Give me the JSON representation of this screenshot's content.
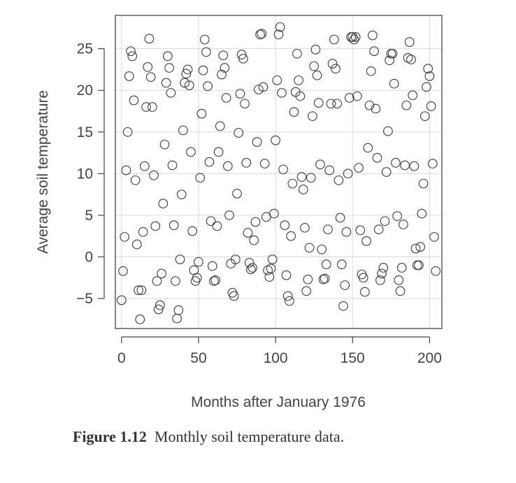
{
  "caption": {
    "label": "Figure 1.12",
    "text": "Monthly soil temperature data."
  },
  "chart_data": {
    "type": "scatter",
    "title": "",
    "xlabel": "Months after January 1976",
    "ylabel": "Average soil temperature",
    "xlim": [
      -4,
      208
    ],
    "ylim": [
      -8.6,
      29
    ],
    "xticks": [
      0,
      50,
      100,
      150,
      200
    ],
    "yticks": [
      -5,
      0,
      5,
      10,
      15,
      20,
      25
    ],
    "grid": true,
    "marker": "open-circle",
    "points": [
      [
        0,
        -5.2
      ],
      [
        1,
        -1.7
      ],
      [
        2,
        2.4
      ],
      [
        3,
        10.4
      ],
      [
        4,
        15.0
      ],
      [
        5,
        21.7
      ],
      [
        6,
        24.7
      ],
      [
        7,
        24.1
      ],
      [
        8,
        18.8
      ],
      [
        9,
        9.2
      ],
      [
        10,
        1.5
      ],
      [
        11,
        -4.0
      ],
      [
        12,
        -7.5
      ],
      [
        13,
        -4.0
      ],
      [
        14,
        3.0
      ],
      [
        15,
        10.9
      ],
      [
        16,
        18.0
      ],
      [
        17,
        22.8
      ],
      [
        18,
        26.2
      ],
      [
        19,
        21.6
      ],
      [
        20,
        18.0
      ],
      [
        21,
        9.8
      ],
      [
        22,
        3.7
      ],
      [
        23,
        -2.9
      ],
      [
        24,
        -6.3
      ],
      [
        25,
        -5.8
      ],
      [
        26,
        -2.0
      ],
      [
        27,
        6.4
      ],
      [
        28,
        13.5
      ],
      [
        29,
        20.9
      ],
      [
        30,
        24.1
      ],
      [
        31,
        22.7
      ],
      [
        32,
        19.7
      ],
      [
        33,
        11.0
      ],
      [
        34,
        3.8
      ],
      [
        35,
        -2.9
      ],
      [
        36,
        -7.4
      ],
      [
        37,
        -6.4
      ],
      [
        38,
        -0.3
      ],
      [
        39,
        7.5
      ],
      [
        40,
        15.2
      ],
      [
        41,
        20.9
      ],
      [
        42,
        22.0
      ],
      [
        43,
        22.5
      ],
      [
        44,
        20.6
      ],
      [
        45,
        12.6
      ],
      [
        46,
        3.1
      ],
      [
        47,
        -1.6
      ],
      [
        48,
        -2.9
      ],
      [
        49,
        -2.5
      ],
      [
        50,
        -0.6
      ],
      [
        51,
        9.5
      ],
      [
        52,
        17.2
      ],
      [
        53,
        22.4
      ],
      [
        54,
        26.1
      ],
      [
        55,
        24.6
      ],
      [
        56,
        20.5
      ],
      [
        57,
        11.4
      ],
      [
        58,
        4.3
      ],
      [
        59,
        -1.1
      ],
      [
        60,
        -2.9
      ],
      [
        61,
        -2.8
      ],
      [
        62,
        3.7
      ],
      [
        63,
        12.6
      ],
      [
        64,
        15.7
      ],
      [
        65,
        21.9
      ],
      [
        66,
        24.2
      ],
      [
        67,
        22.7
      ],
      [
        68,
        19.1
      ],
      [
        69,
        10.9
      ],
      [
        70,
        5.0
      ],
      [
        71,
        -0.8
      ],
      [
        72,
        -4.3
      ],
      [
        73,
        -4.7
      ],
      [
        74,
        -0.3
      ],
      [
        75,
        7.6
      ],
      [
        76,
        14.9
      ],
      [
        77,
        19.6
      ],
      [
        78,
        24.3
      ],
      [
        79,
        23.8
      ],
      [
        80,
        18.4
      ],
      [
        81,
        11.3
      ],
      [
        82,
        2.9
      ],
      [
        83,
        -0.7
      ],
      [
        84,
        -1.5
      ],
      [
        85,
        -1.3
      ],
      [
        86,
        2.0
      ],
      [
        87,
        4.2
      ],
      [
        88,
        13.8
      ],
      [
        89,
        20.1
      ],
      [
        90,
        26.7
      ],
      [
        91,
        26.8
      ],
      [
        92,
        20.4
      ],
      [
        93,
        11.2
      ],
      [
        94,
        4.8
      ],
      [
        95,
        -1.6
      ],
      [
        96,
        -2.4
      ],
      [
        97,
        -1.4
      ],
      [
        98,
        -0.3
      ],
      [
        99,
        5.2
      ],
      [
        100,
        14.0
      ],
      [
        101,
        21.2
      ],
      [
        102,
        26.7
      ],
      [
        103,
        27.6
      ],
      [
        104,
        19.7
      ],
      [
        105,
        10.5
      ],
      [
        106,
        3.8
      ],
      [
        107,
        -2.2
      ],
      [
        108,
        -4.7
      ],
      [
        109,
        -5.3
      ],
      [
        110,
        2.5
      ],
      [
        111,
        8.8
      ],
      [
        112,
        17.4
      ],
      [
        113,
        19.8
      ],
      [
        114,
        24.4
      ],
      [
        115,
        21.2
      ],
      [
        116,
        19.3
      ],
      [
        117,
        9.6
      ],
      [
        118,
        8.1
      ],
      [
        119,
        3.5
      ],
      [
        120,
        -4.1
      ],
      [
        121,
        -2.7
      ],
      [
        122,
        1.1
      ],
      [
        123,
        9.5
      ],
      [
        124,
        16.9
      ],
      [
        125,
        22.9
      ],
      [
        126,
        24.9
      ],
      [
        127,
        21.8
      ],
      [
        128,
        18.5
      ],
      [
        129,
        11.1
      ],
      [
        130,
        0.9
      ],
      [
        131,
        -2.7
      ],
      [
        132,
        -2.6
      ],
      [
        133,
        -0.9
      ],
      [
        134,
        3.3
      ],
      [
        135,
        10.4
      ],
      [
        136,
        18.4
      ],
      [
        137,
        23.2
      ],
      [
        138,
        26.1
      ],
      [
        139,
        22.6
      ],
      [
        140,
        18.4
      ],
      [
        141,
        9.2
      ],
      [
        142,
        4.7
      ],
      [
        143,
        -0.9
      ],
      [
        144,
        -5.9
      ],
      [
        145,
        -3.4
      ],
      [
        146,
        3.0
      ],
      [
        147,
        10.0
      ],
      [
        148,
        19.1
      ],
      [
        149,
        26.4
      ],
      [
        150,
        26.4
      ],
      [
        151,
        26.1
      ],
      [
        152,
        26.4
      ],
      [
        153,
        19.3
      ],
      [
        154,
        10.7
      ],
      [
        155,
        3.2
      ],
      [
        156,
        -2.1
      ],
      [
        157,
        -2.5
      ],
      [
        158,
        -4.2
      ],
      [
        159,
        1.9
      ],
      [
        160,
        13.1
      ],
      [
        161,
        18.2
      ],
      [
        162,
        22.3
      ],
      [
        163,
        26.6
      ],
      [
        164,
        24.7
      ],
      [
        165,
        17.8
      ],
      [
        166,
        11.9
      ],
      [
        167,
        3.3
      ],
      [
        168,
        -2.8
      ],
      [
        169,
        -2.0
      ],
      [
        170,
        -1.3
      ],
      [
        171,
        4.3
      ],
      [
        172,
        10.2
      ],
      [
        173,
        15.1
      ],
      [
        174,
        23.6
      ],
      [
        175,
        24.4
      ],
      [
        176,
        24.4
      ],
      [
        177,
        20.8
      ],
      [
        178,
        11.3
      ],
      [
        179,
        4.9
      ],
      [
        180,
        -2.8
      ],
      [
        181,
        -4.1
      ],
      [
        182,
        -1.3
      ],
      [
        183,
        3.9
      ],
      [
        184,
        11.0
      ],
      [
        185,
        18.2
      ],
      [
        186,
        23.9
      ],
      [
        187,
        25.8
      ],
      [
        188,
        23.7
      ],
      [
        189,
        19.4
      ],
      [
        190,
        10.9
      ],
      [
        191,
        1.0
      ],
      [
        192,
        -1.0
      ],
      [
        193,
        -1.0
      ],
      [
        194,
        1.2
      ],
      [
        195,
        5.2
      ],
      [
        196,
        8.8
      ],
      [
        197,
        16.9
      ],
      [
        198,
        20.4
      ],
      [
        199,
        22.6
      ],
      [
        200,
        21.7
      ],
      [
        201,
        18.1
      ],
      [
        202,
        11.2
      ],
      [
        203,
        2.4
      ],
      [
        204,
        -1.7
      ]
    ]
  },
  "colors": {
    "axis": "#444444",
    "grid": "#d9d9d9",
    "marker": "#3a3a3a",
    "background": "#ffffff"
  }
}
